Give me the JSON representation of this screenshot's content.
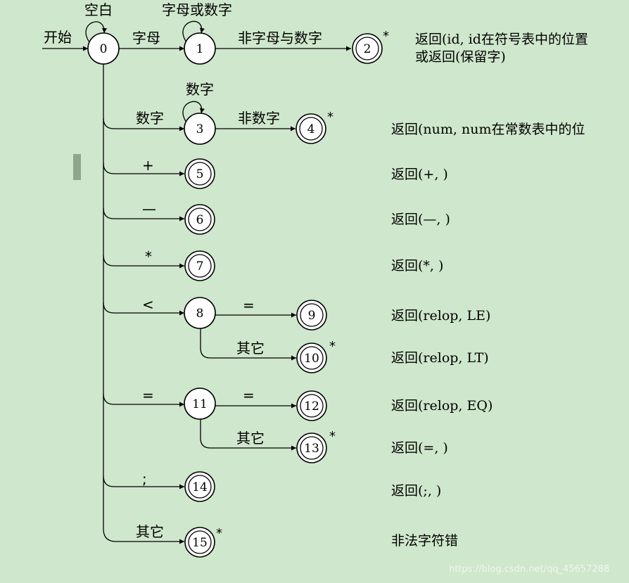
{
  "colors": {
    "background": "#cfe7cc",
    "state_fill": "#ffffff",
    "stroke": "#000000"
  },
  "start_label": "开始",
  "states": [
    {
      "id": "0"
    },
    {
      "id": "1"
    },
    {
      "id": "2"
    },
    {
      "id": "3"
    },
    {
      "id": "4"
    },
    {
      "id": "5"
    },
    {
      "id": "6"
    },
    {
      "id": "7"
    },
    {
      "id": "8"
    },
    {
      "id": "9"
    },
    {
      "id": "10"
    },
    {
      "id": "11"
    },
    {
      "id": "12"
    },
    {
      "id": "13"
    },
    {
      "id": "14"
    },
    {
      "id": "15"
    }
  ],
  "loops": {
    "s0": "空白",
    "s1": "字母或数字",
    "s3": "数字"
  },
  "edge_labels": {
    "e0_1": "字母",
    "e1_2": "非字母与数字",
    "e0_3": "数字",
    "e3_4": "非数字",
    "e0_5": "+",
    "e0_6": "—",
    "e0_7": "*",
    "e0_8": "<",
    "e8_9": "=",
    "e8_10": "其它",
    "e0_11": "=",
    "e11_12": "=",
    "e11_13": "其它",
    "e0_14": ";",
    "e0_15": "其它"
  },
  "star": "*",
  "returns": {
    "r2a": "返回(id, id在符号表中的位置",
    "r2b": "或返回(保留字)",
    "r4": "返回(num, num在常数表中的位",
    "r5": "返回(+, )",
    "r6": "返回(—, )",
    "r7": "返回(*, )",
    "r9": "返回(relop, LE)",
    "r10": "返回(relop, LT)",
    "r12": "返回(relop, EQ)",
    "r13": "返回(=, )",
    "r14": "返回(;, )",
    "r15": "非法字符错"
  },
  "watermark": "https://blog.csdn.net/qq_45657288"
}
